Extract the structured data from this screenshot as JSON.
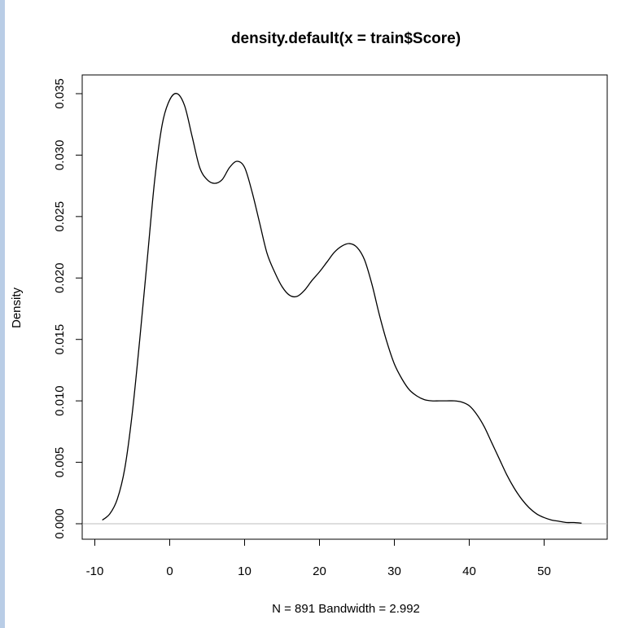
{
  "chart_data": {
    "type": "line",
    "title": "density.default(x = train$Score)",
    "xlabel": "N = 891   Bandwidth = 2.992",
    "ylabel": "Density",
    "xlim": [
      -10,
      58
    ],
    "ylim": [
      0,
      0.036
    ],
    "xticks": [
      -10,
      0,
      10,
      20,
      30,
      40,
      50
    ],
    "xtick_labels": [
      "-10",
      "0",
      "10",
      "20",
      "30",
      "40",
      "50"
    ],
    "yticks": [
      0,
      0.005,
      0.01,
      0.015,
      0.02,
      0.025,
      0.03,
      0.035
    ],
    "ytick_labels": [
      "0.000",
      "0.005",
      "0.010",
      "0.015",
      "0.020",
      "0.025",
      "0.030",
      "0.035"
    ],
    "baseline": 0,
    "grid": false,
    "legend": "none",
    "series": [
      {
        "x": [
          -9,
          -8,
          -7,
          -6,
          -5,
          -4,
          -3,
          -2,
          -1,
          0,
          1,
          2,
          3,
          4,
          5,
          6,
          7,
          8,
          9,
          10,
          11,
          12,
          13,
          14,
          15,
          16,
          17,
          18,
          19,
          20,
          21,
          22,
          23,
          24,
          25,
          26,
          27,
          28,
          29,
          30,
          31,
          32,
          33,
          34,
          35,
          36,
          37,
          38,
          39,
          40,
          41,
          42,
          43,
          44,
          45,
          46,
          47,
          48,
          49,
          50,
          51,
          52,
          53,
          54,
          55
        ],
        "y": [
          0.0003,
          0.0008,
          0.002,
          0.0045,
          0.009,
          0.015,
          0.0215,
          0.028,
          0.0325,
          0.0345,
          0.035,
          0.034,
          0.0315,
          0.029,
          0.028,
          0.0277,
          0.028,
          0.029,
          0.0295,
          0.029,
          0.027,
          0.0245,
          0.022,
          0.0205,
          0.0193,
          0.0186,
          0.0185,
          0.019,
          0.0198,
          0.0205,
          0.0213,
          0.0221,
          0.0226,
          0.0228,
          0.0225,
          0.0215,
          0.0195,
          0.017,
          0.0148,
          0.013,
          0.0118,
          0.0109,
          0.0104,
          0.0101,
          0.01,
          0.01,
          0.01,
          0.01,
          0.0099,
          0.0096,
          0.0089,
          0.0079,
          0.0066,
          0.0053,
          0.004,
          0.0029,
          0.002,
          0.0013,
          0.0008,
          0.0005,
          0.0003,
          0.0002,
          0.0001,
          0.0001,
          5e-05
        ]
      }
    ]
  }
}
